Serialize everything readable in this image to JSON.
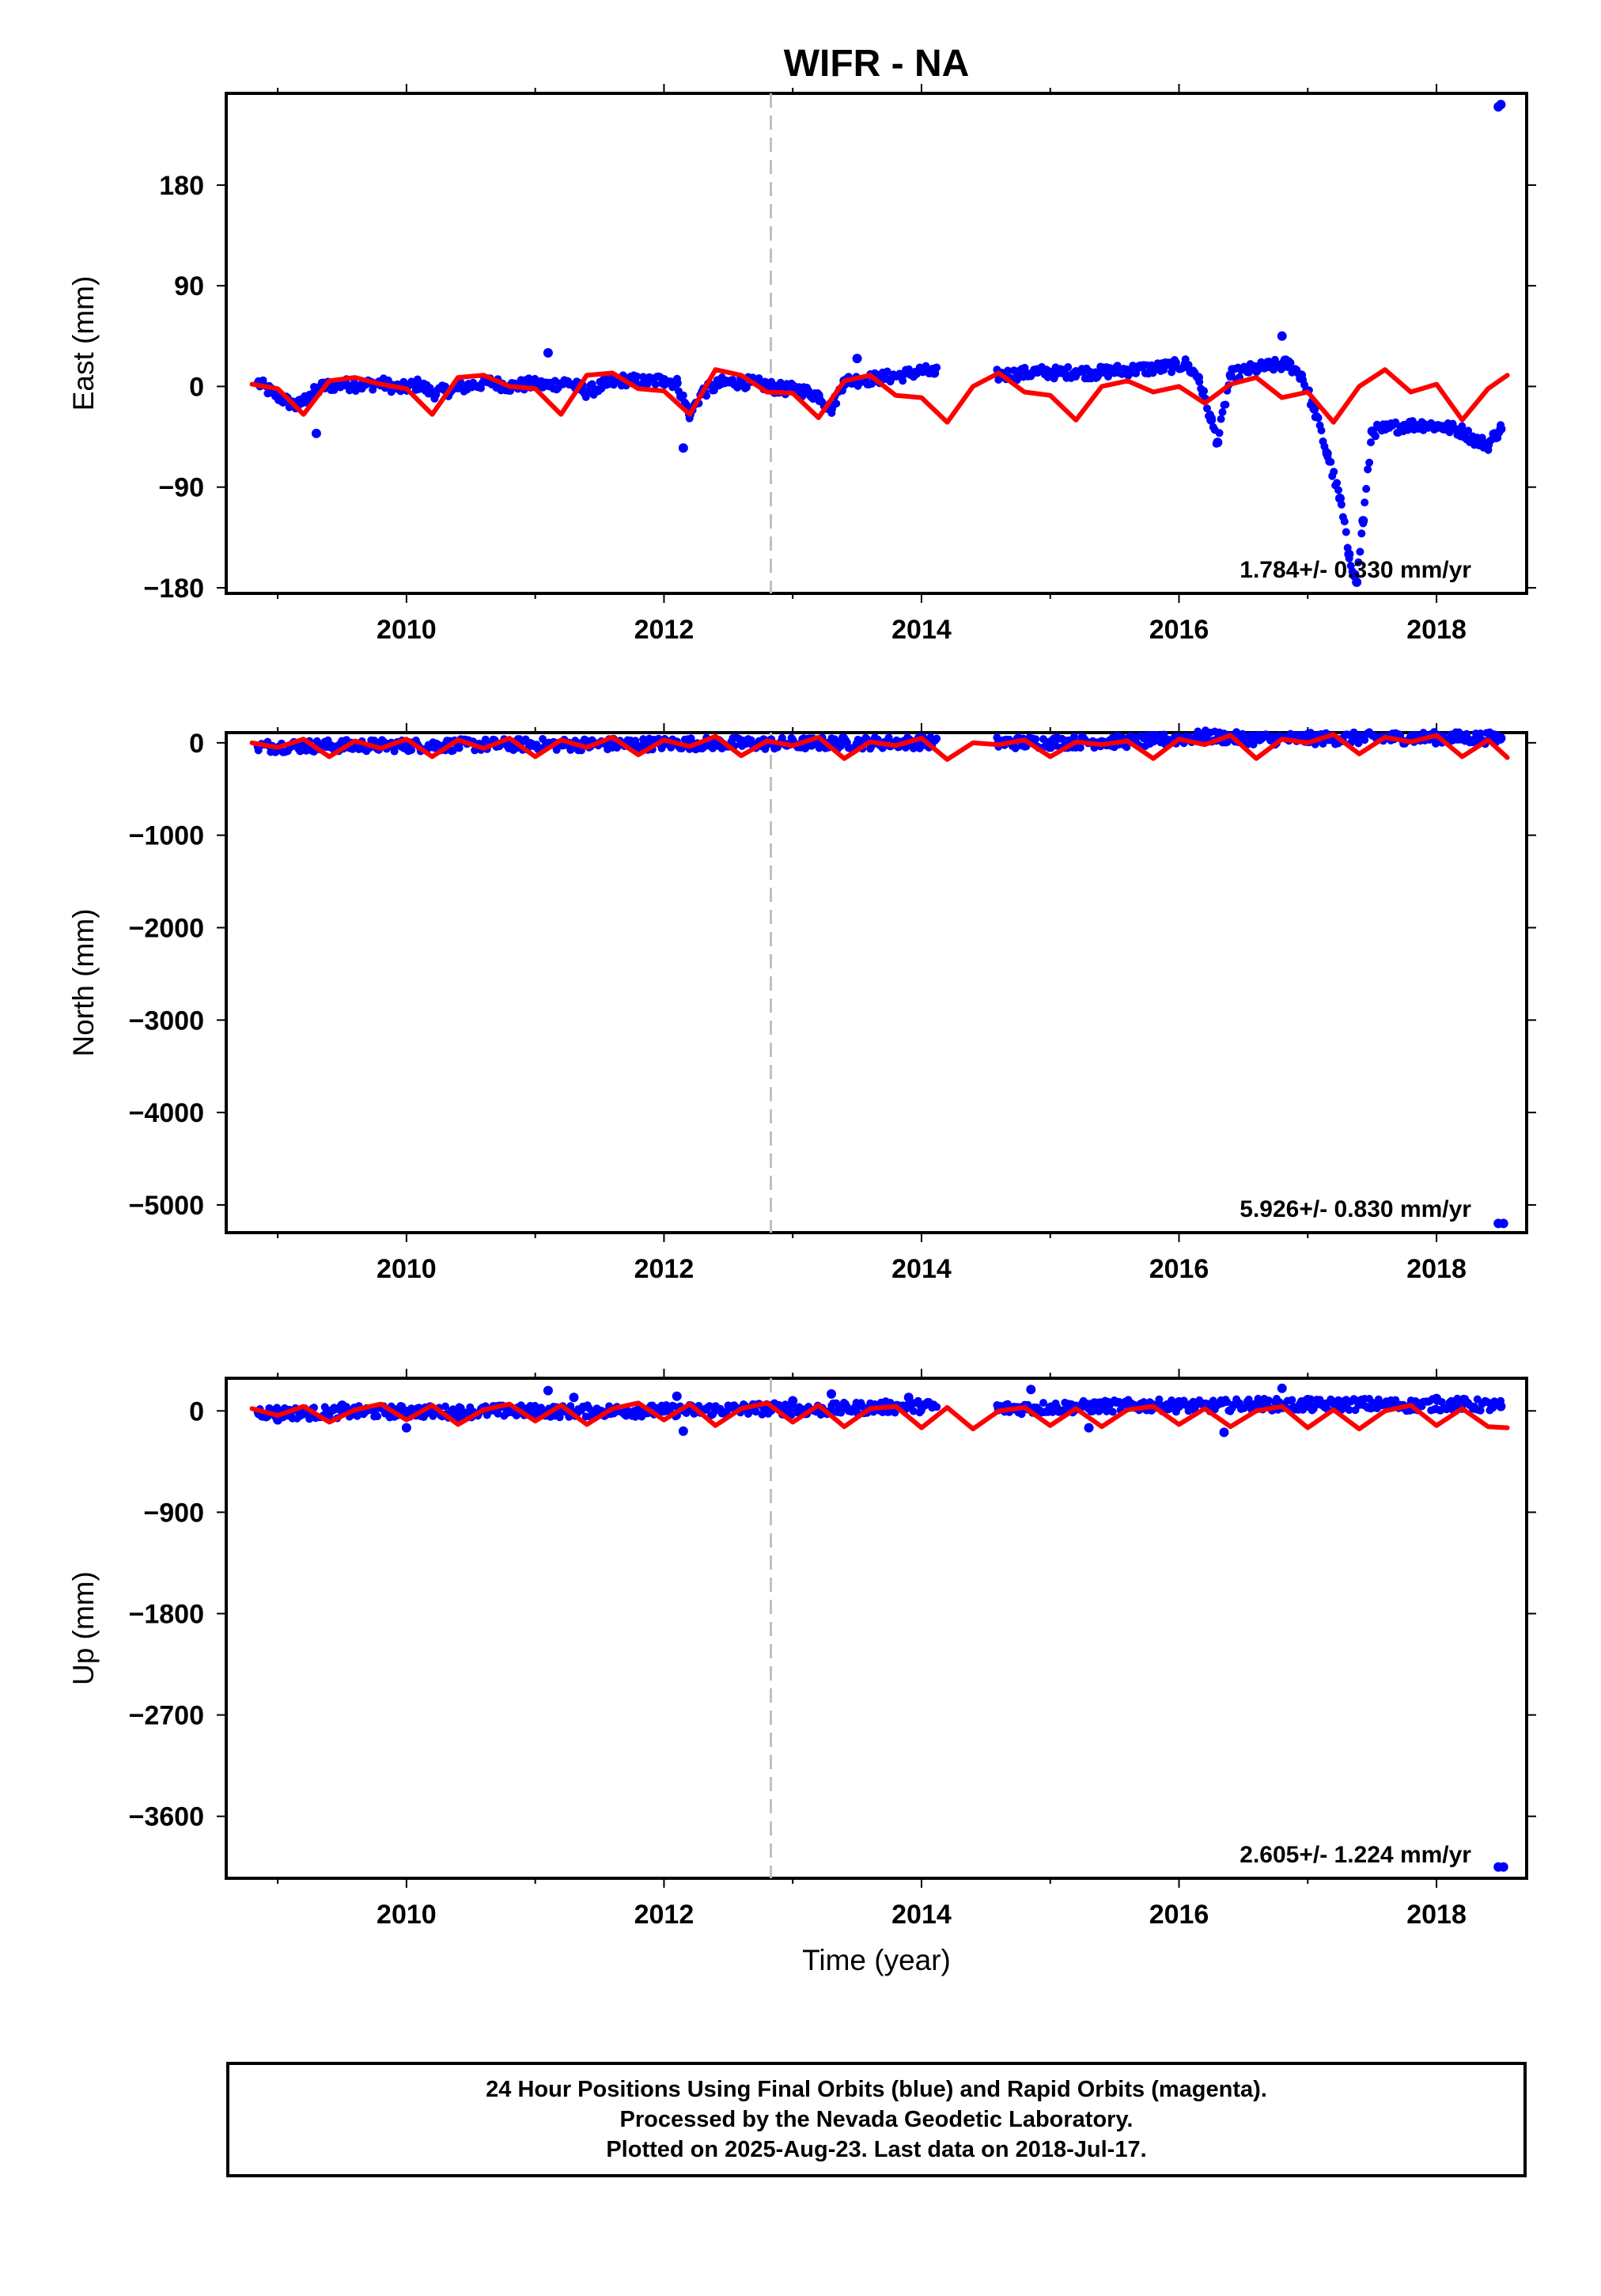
{
  "figure": {
    "title": "WIFR - NA",
    "xlabel": "Time (year)",
    "caption": [
      "24 Hour Positions Using Final Orbits (blue) and Rapid Orbits (magenta).",
      "Processed by the Nevada Geodetic Laboratory.",
      "Plotted on 2025-Aug-23. Last data on 2018-Jul-17."
    ]
  },
  "colors": {
    "data": "#0000ff",
    "model": "#ff0000",
    "event_line": "#c0c0c0",
    "axes": "#000000"
  },
  "chart_data": [
    {
      "type": "scatter",
      "component": "East",
      "ylabel": "East (mm)",
      "xlim": [
        2008.6,
        2018.7
      ],
      "ylim": [
        -185,
        262
      ],
      "yticks": [
        180,
        90,
        0,
        -90,
        -180
      ],
      "ytick_labels": [
        "180",
        "90",
        "0",
        "−90",
        "−180"
      ],
      "xticks": [
        2010,
        2012,
        2014,
        2016,
        2018
      ],
      "event_line_x": 2012.83,
      "rate_label": "1.784+/- 0.330 mm/yr",
      "series": [
        {
          "role": "positions",
          "x": [
            2008.85,
            2008.95,
            2009.05,
            2009.15,
            2009.25,
            2009.35,
            2009.5,
            2009.65,
            2009.8,
            2009.95,
            2010.1,
            2010.2,
            2010.35,
            2010.5,
            2010.65,
            2010.8,
            2010.95,
            2011.1,
            2011.25,
            2011.4,
            2011.55,
            2011.7,
            2011.85,
            2012.0,
            2012.1,
            2012.2,
            2012.3,
            2012.45,
            2012.6,
            2012.75,
            2012.9,
            2013.05,
            2013.2,
            2013.3,
            2013.4,
            2013.55,
            2013.7,
            2013.85,
            2014.0,
            2014.1,
            2014.6,
            2014.75,
            2014.9,
            2015.05,
            2015.2,
            2015.35,
            2015.5,
            2015.65,
            2015.8,
            2015.95,
            2016.05,
            2016.15,
            2016.25,
            2016.3,
            2016.4,
            2016.55,
            2016.7,
            2016.85,
            2016.95,
            2017.05,
            2017.15,
            2017.25,
            2017.32,
            2017.38,
            2017.43,
            2017.5,
            2017.6,
            2017.75,
            2017.9,
            2018.05,
            2018.2,
            2018.3,
            2018.4,
            2018.45,
            2018.5
          ],
          "y": [
            3,
            -5,
            -12,
            -18,
            -8,
            0,
            2,
            1,
            3,
            -2,
            2,
            -6,
            -3,
            1,
            4,
            0,
            2,
            1,
            4,
            -5,
            2,
            6,
            4,
            6,
            3,
            -25,
            -5,
            3,
            4,
            2,
            -2,
            -3,
            -8,
            -20,
            5,
            6,
            8,
            10,
            14,
            12,
            10,
            11,
            13,
            12,
            13,
            12,
            14,
            15,
            16,
            18,
            20,
            8,
            -30,
            -50,
            10,
            15,
            18,
            20,
            10,
            -20,
            -60,
            -100,
            -150,
            -175,
            -120,
            -40,
            -38,
            -35,
            -34,
            -36,
            -40,
            -48,
            -52,
            -44,
            -38
          ]
        },
        {
          "role": "outliers",
          "x": [
            2009.3,
            2011.1,
            2012.15,
            2013.5,
            2016.8,
            2018.48,
            2018.5
          ],
          "y": [
            -42,
            30,
            -55,
            25,
            45,
            250,
            252
          ]
        },
        {
          "role": "model",
          "x": [
            2008.8,
            2009.0,
            2009.2,
            2009.4,
            2009.6,
            2009.8,
            2010.0,
            2010.2,
            2010.4,
            2010.6,
            2010.8,
            2011.0,
            2011.2,
            2011.4,
            2011.6,
            2011.8,
            2012.0,
            2012.2,
            2012.4,
            2012.6,
            2012.8,
            2013.0,
            2013.2,
            2013.4,
            2013.6,
            2013.8,
            2014.0,
            2014.2,
            2014.4,
            2014.6,
            2014.8,
            2015.0,
            2015.2,
            2015.4,
            2015.6,
            2015.8,
            2016.0,
            2016.2,
            2016.4,
            2016.6,
            2016.8,
            2017.0,
            2017.2,
            2017.4,
            2017.6,
            2017.8,
            2018.0,
            2018.2,
            2018.4,
            2018.55
          ],
          "y": [
            2,
            -2,
            -25,
            5,
            8,
            2,
            -2,
            -25,
            8,
            10,
            0,
            -2,
            -25,
            10,
            12,
            -2,
            -4,
            -25,
            15,
            10,
            -5,
            -6,
            -28,
            5,
            10,
            -8,
            -10,
            -32,
            0,
            12,
            -5,
            -8,
            -30,
            0,
            5,
            -5,
            0,
            -15,
            2,
            8,
            -10,
            -5,
            -32,
            0,
            15,
            -5,
            2,
            -30,
            -2,
            10
          ]
        }
      ]
    },
    {
      "type": "scatter",
      "component": "North",
      "ylabel": "North (mm)",
      "xlim": [
        2008.6,
        2018.7
      ],
      "ylim": [
        -5300,
        110
      ],
      "yticks": [
        0,
        -1000,
        -2000,
        -3000,
        -4000,
        -5000
      ],
      "ytick_labels": [
        "0",
        "−1000",
        "−2000",
        "−3000",
        "−4000",
        "−5000"
      ],
      "xticks": [
        2010,
        2012,
        2014,
        2016,
        2018
      ],
      "event_line_x": 2012.83,
      "rate_label": "5.926+/- 0.830 mm/yr",
      "series": [
        {
          "role": "positions",
          "x": [
            2008.85,
            2009.2,
            2009.6,
            2010.0,
            2010.4,
            2010.8,
            2011.2,
            2011.6,
            2012.0,
            2012.4,
            2012.8,
            2013.2,
            2013.6,
            2014.0,
            2014.6,
            2015.0,
            2015.4,
            2015.8,
            2016.2,
            2016.6,
            2017.0,
            2017.4,
            2017.8,
            2018.2,
            2018.5
          ],
          "y": [
            -40,
            -35,
            -30,
            -30,
            -25,
            -20,
            -20,
            -15,
            -10,
            -5,
            -10,
            -5,
            0,
            5,
            0,
            5,
            10,
            20,
            70,
            40,
            45,
            50,
            55,
            55,
            50
          ]
        },
        {
          "role": "outliers",
          "x": [
            2018.48,
            2018.52
          ],
          "y": [
            -5200,
            -5200
          ]
        },
        {
          "role": "model",
          "x": [
            2008.8,
            2009.0,
            2009.2,
            2009.4,
            2009.6,
            2009.8,
            2010.0,
            2010.2,
            2010.4,
            2010.6,
            2010.8,
            2011.0,
            2011.2,
            2011.4,
            2011.6,
            2011.8,
            2012.0,
            2012.2,
            2012.4,
            2012.6,
            2012.8,
            2013.0,
            2013.2,
            2013.4,
            2013.6,
            2013.8,
            2014.0,
            2014.2,
            2014.4,
            2014.6,
            2014.8,
            2015.0,
            2015.2,
            2015.4,
            2015.6,
            2015.8,
            2016.0,
            2016.2,
            2016.4,
            2016.6,
            2016.8,
            2017.0,
            2017.2,
            2017.4,
            2017.6,
            2017.8,
            2018.0,
            2018.2,
            2018.4,
            2018.55
          ],
          "y": [
            0,
            -50,
            40,
            -150,
            20,
            -60,
            40,
            -150,
            30,
            -60,
            50,
            -150,
            30,
            -50,
            60,
            -130,
            30,
            -40,
            70,
            -140,
            20,
            -30,
            60,
            -170,
            10,
            -30,
            50,
            -180,
            0,
            -20,
            30,
            -150,
            10,
            -20,
            20,
            -170,
            40,
            -20,
            80,
            -170,
            40,
            0,
            90,
            -120,
            60,
            10,
            80,
            -150,
            30,
            -160
          ]
        }
      ]
    },
    {
      "type": "scatter",
      "component": "Up",
      "ylabel": "Up (mm)",
      "xlim": [
        2008.6,
        2018.7
      ],
      "ylim": [
        -4150,
        290
      ],
      "yticks": [
        0,
        -900,
        -1800,
        -2700,
        -3600
      ],
      "ytick_labels": [
        "0",
        "−900",
        "−1800",
        "−2700",
        "−3600"
      ],
      "xticks": [
        2010,
        2012,
        2014,
        2016,
        2018
      ],
      "event_line_x": 2012.83,
      "rate_label": "2.605+/- 1.224 mm/yr",
      "series": [
        {
          "role": "positions",
          "x": [
            2008.85,
            2009.2,
            2009.6,
            2010.0,
            2010.4,
            2010.8,
            2011.2,
            2011.6,
            2012.0,
            2012.4,
            2012.8,
            2013.2,
            2013.6,
            2014.0,
            2014.6,
            2015.0,
            2015.4,
            2015.8,
            2016.2,
            2016.6,
            2017.0,
            2017.4,
            2017.8,
            2018.2,
            2018.5
          ],
          "y": [
            -10,
            -20,
            -10,
            -5,
            -10,
            0,
            -5,
            0,
            0,
            10,
            20,
            10,
            30,
            40,
            20,
            30,
            40,
            50,
            40,
            60,
            50,
            60,
            50,
            60,
            40
          ]
        },
        {
          "role": "outliers",
          "x": [
            2009.0,
            2009.5,
            2010.0,
            2011.1,
            2011.3,
            2012.1,
            2012.15,
            2013.0,
            2013.3,
            2013.9,
            2014.85,
            2015.3,
            2016.0,
            2016.35,
            2016.8,
            2017.0,
            2018.0,
            2018.48,
            2018.52
          ],
          "y": [
            -80,
            50,
            -150,
            180,
            120,
            130,
            -180,
            90,
            150,
            120,
            190,
            -150,
            80,
            -190,
            200,
            100,
            110,
            -4050,
            -4050
          ]
        },
        {
          "role": "model",
          "x": [
            2008.8,
            2009.0,
            2009.2,
            2009.4,
            2009.6,
            2009.8,
            2010.0,
            2010.2,
            2010.4,
            2010.6,
            2010.8,
            2011.0,
            2011.2,
            2011.4,
            2011.6,
            2011.8,
            2012.0,
            2012.2,
            2012.4,
            2012.6,
            2012.8,
            2013.0,
            2013.2,
            2013.4,
            2013.6,
            2013.8,
            2014.0,
            2014.2,
            2014.4,
            2014.6,
            2014.8,
            2015.0,
            2015.2,
            2015.4,
            2015.6,
            2015.8,
            2016.0,
            2016.2,
            2016.4,
            2016.6,
            2016.8,
            2017.0,
            2017.2,
            2017.4,
            2017.6,
            2017.8,
            2018.0,
            2018.2,
            2018.4,
            2018.55
          ],
          "y": [
            20,
            -40,
            40,
            -100,
            10,
            60,
            -80,
            50,
            -120,
            10,
            60,
            -90,
            50,
            -120,
            20,
            70,
            -80,
            60,
            -130,
            20,
            70,
            -100,
            50,
            -140,
            20,
            40,
            -150,
            30,
            -160,
            0,
            30,
            -130,
            20,
            -140,
            10,
            40,
            -120,
            20,
            -140,
            0,
            40,
            -150,
            10,
            -160,
            0,
            50,
            -130,
            20,
            -140,
            -150
          ]
        }
      ]
    }
  ]
}
